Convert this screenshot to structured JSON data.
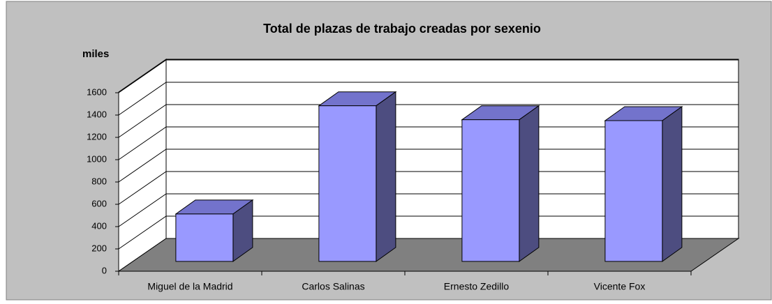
{
  "chart_data": {
    "type": "bar",
    "title": "Total de plazas de trabajo creadas por sexenio",
    "y_label": "miles",
    "categories": [
      "Miguel de la Madrid",
      "Carlos Salinas",
      "Ernesto Zedillo",
      "Vicente Fox"
    ],
    "values": [
      425,
      1395,
      1270,
      1262
    ],
    "color": "#9999ff",
    "ylim": [
      0,
      1600
    ],
    "yticks": [
      0,
      200,
      400,
      600,
      800,
      1000,
      1200,
      1400,
      1600
    ],
    "grid": true
  }
}
